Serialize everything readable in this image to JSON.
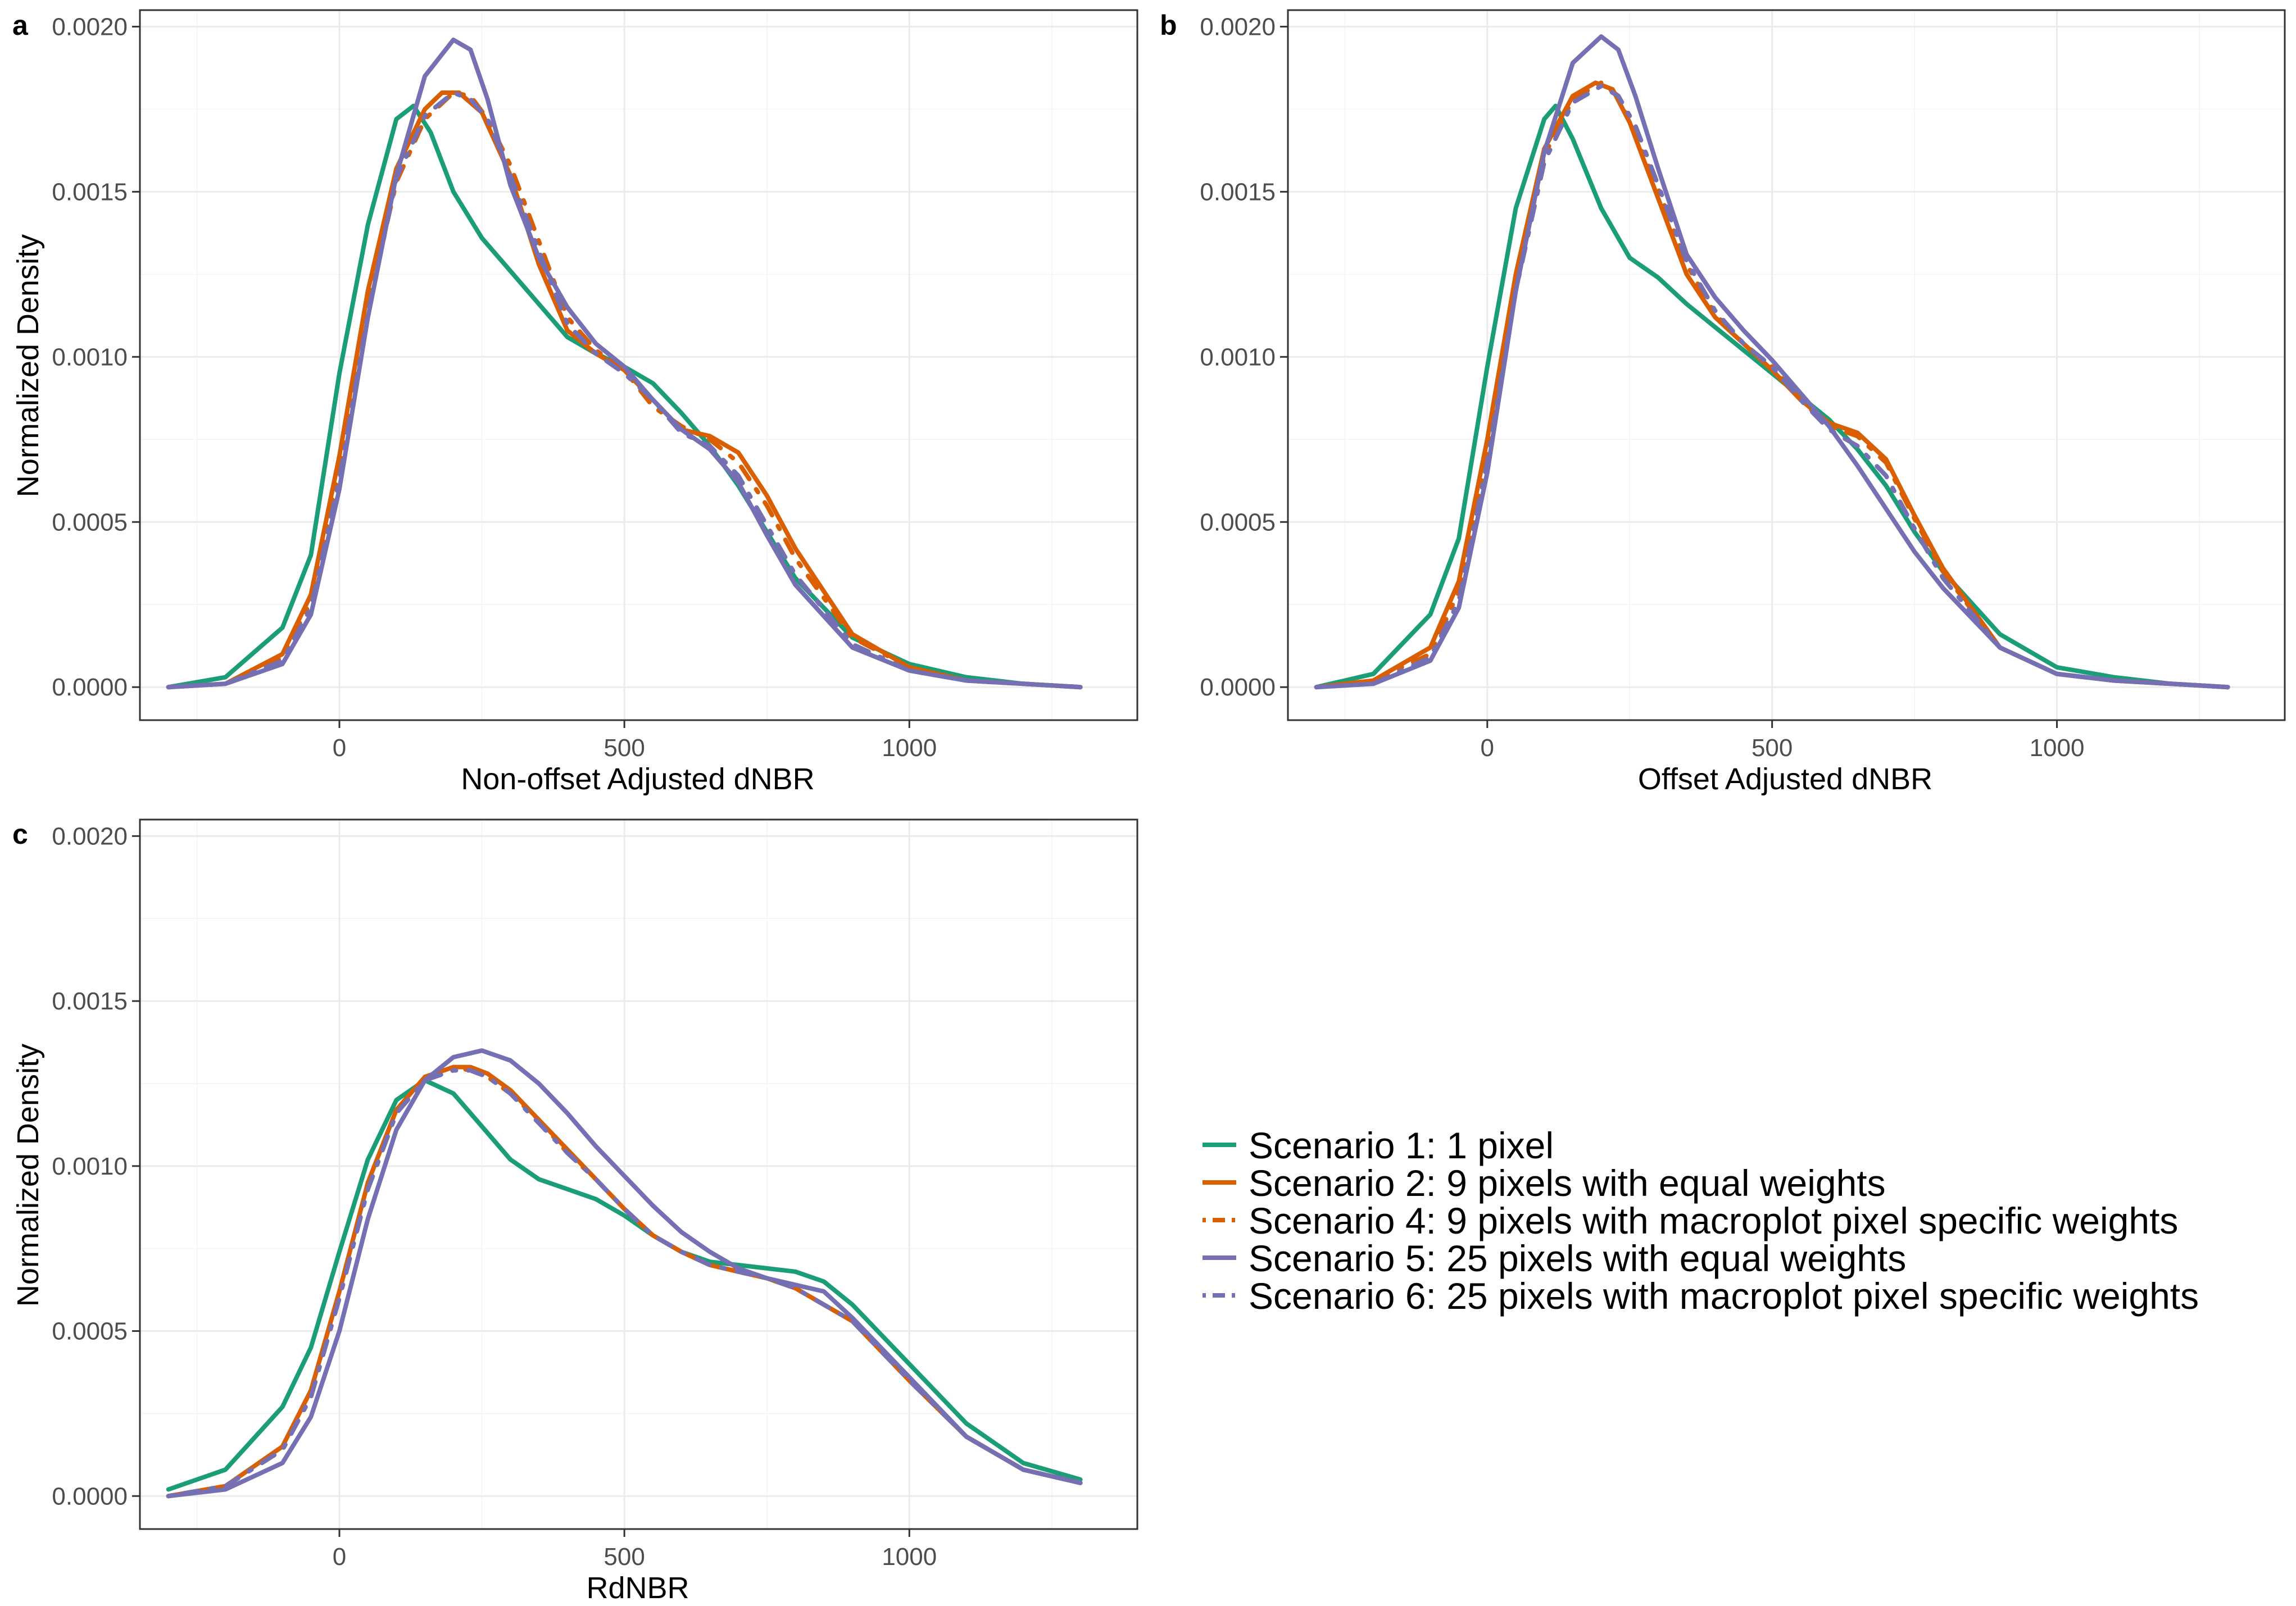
{
  "legend": {
    "items": [
      {
        "label": "Scenario 1: 1 pixel",
        "color": "#1b9e77",
        "dash": "solid"
      },
      {
        "label": "Scenario 2: 9 pixels with equal weights",
        "color": "#d95f02",
        "dash": "solid"
      },
      {
        "label": "Scenario 4: 9 pixels with macroplot pixel specific weights",
        "color": "#d95f02",
        "dash": "dashdot"
      },
      {
        "label": "Scenario 5: 25 pixels with equal weights",
        "color": "#7570b3",
        "dash": "solid"
      },
      {
        "label": "Scenario 6: 25 pixels with macroplot pixel specific weights",
        "color": "#7570b3",
        "dash": "dashdot"
      }
    ]
  },
  "chart_data": [
    {
      "panel": "a",
      "type": "line",
      "xlabel": "Non-offset Adjusted dNBR",
      "ylabel": "Normalized Density",
      "xlim": [
        -350,
        1400
      ],
      "ylim": [
        -0.0001,
        0.00205
      ],
      "xticks": [
        0,
        500,
        1000
      ],
      "xtick_labels": [
        "0",
        "500",
        "1000"
      ],
      "yticks": [
        0,
        0.0005,
        0.001,
        0.0015,
        0.002
      ],
      "ytick_labels": [
        "0.0000",
        "0.0005",
        "0.0010",
        "0.0015",
        "0.0020"
      ],
      "series": [
        {
          "name": "Scenario 1: 1 pixel",
          "x": [
            -300,
            -200,
            -100,
            -50,
            0,
            50,
            100,
            130,
            160,
            200,
            250,
            300,
            350,
            400,
            450,
            500,
            550,
            600,
            650,
            700,
            750,
            800,
            900,
            1000,
            1100,
            1200,
            1300
          ],
          "y": [
            0.0,
            3e-05,
            0.00018,
            0.0004,
            0.00095,
            0.0014,
            0.00172,
            0.00176,
            0.00168,
            0.0015,
            0.00136,
            0.00126,
            0.00116,
            0.00106,
            0.00101,
            0.00097,
            0.00092,
            0.00083,
            0.00073,
            0.00061,
            0.00047,
            0.00033,
            0.00015,
            7e-05,
            3e-05,
            1e-05,
            0.0
          ]
        },
        {
          "name": "Scenario 2: 9 pixels with equal weights",
          "x": [
            -300,
            -200,
            -100,
            -50,
            0,
            50,
            100,
            150,
            180,
            210,
            250,
            300,
            350,
            400,
            450,
            500,
            550,
            600,
            650,
            700,
            750,
            800,
            900,
            1000,
            1100,
            1200,
            1300
          ],
          "y": [
            0.0,
            1e-05,
            0.0001,
            0.00028,
            0.0007,
            0.0012,
            0.00157,
            0.00175,
            0.0018,
            0.0018,
            0.00174,
            0.00155,
            0.00128,
            0.00108,
            0.00101,
            0.00096,
            0.00087,
            0.00078,
            0.00076,
            0.00071,
            0.00058,
            0.00042,
            0.00016,
            6e-05,
            2e-05,
            1e-05,
            0.0
          ]
        },
        {
          "name": "Scenario 4: 9 pixels with macroplot pixel specific weights",
          "x": [
            -300,
            -200,
            -100,
            -50,
            0,
            50,
            100,
            150,
            200,
            230,
            260,
            300,
            350,
            400,
            450,
            500,
            550,
            600,
            650,
            700,
            750,
            800,
            900,
            1000,
            1100,
            1200,
            1300
          ],
          "y": [
            0.0,
            1e-05,
            9e-05,
            0.00026,
            0.00066,
            0.00115,
            0.00153,
            0.00172,
            0.0018,
            0.00179,
            0.00172,
            0.00158,
            0.00135,
            0.00112,
            0.00102,
            0.00096,
            0.00085,
            0.00079,
            0.00075,
            0.00068,
            0.00055,
            0.00039,
            0.00015,
            6e-05,
            2e-05,
            1e-05,
            0.0
          ]
        },
        {
          "name": "Scenario 5: 25 pixels with equal weights",
          "x": [
            -300,
            -200,
            -100,
            -50,
            0,
            50,
            100,
            150,
            200,
            230,
            260,
            300,
            350,
            400,
            450,
            500,
            550,
            600,
            650,
            700,
            750,
            800,
            900,
            1000,
            1100,
            1200,
            1300
          ],
          "y": [
            0.0,
            1e-05,
            7e-05,
            0.00022,
            0.0006,
            0.00112,
            0.00155,
            0.00185,
            0.00196,
            0.00193,
            0.00178,
            0.00152,
            0.0013,
            0.00115,
            0.00104,
            0.00097,
            0.00087,
            0.00078,
            0.00072,
            0.00062,
            0.00046,
            0.00031,
            0.00012,
            5e-05,
            2e-05,
            1e-05,
            0.0
          ]
        },
        {
          "name": "Scenario 6: 25 pixels with macroplot pixel specific weights",
          "x": [
            -300,
            -200,
            -100,
            -50,
            0,
            50,
            100,
            150,
            200,
            230,
            260,
            300,
            350,
            400,
            450,
            500,
            550,
            600,
            650,
            700,
            750,
            800,
            900,
            1000,
            1100,
            1200,
            1300
          ],
          "y": [
            0.0,
            1e-05,
            8e-05,
            0.00024,
            0.00063,
            0.00113,
            0.00154,
            0.00173,
            0.0018,
            0.00178,
            0.00172,
            0.00155,
            0.00132,
            0.0011,
            0.00101,
            0.00095,
            0.00087,
            0.00077,
            0.00073,
            0.00064,
            0.00049,
            0.00034,
            0.00013,
            5e-05,
            2e-05,
            1e-05,
            0.0
          ]
        }
      ]
    },
    {
      "panel": "b",
      "type": "line",
      "xlabel": "Offset Adjusted dNBR",
      "ylabel": "",
      "xlim": [
        -350,
        1400
      ],
      "ylim": [
        -0.0001,
        0.00205
      ],
      "xticks": [
        0,
        500,
        1000
      ],
      "xtick_labels": [
        "0",
        "500",
        "1000"
      ],
      "yticks": [
        0,
        0.0005,
        0.001,
        0.0015,
        0.002
      ],
      "ytick_labels": [
        "0.0000",
        "0.0005",
        "0.0010",
        "0.0015",
        "0.0020"
      ],
      "series": [
        {
          "name": "Scenario 1: 1 pixel",
          "x": [
            -300,
            -200,
            -100,
            -50,
            0,
            50,
            100,
            120,
            150,
            200,
            250,
            300,
            350,
            400,
            450,
            500,
            550,
            600,
            650,
            700,
            750,
            800,
            900,
            1000,
            1100,
            1200,
            1300
          ],
          "y": [
            0.0,
            4e-05,
            0.00022,
            0.00045,
            0.00097,
            0.00145,
            0.00172,
            0.00176,
            0.00166,
            0.00145,
            0.0013,
            0.00124,
            0.00116,
            0.00109,
            0.00102,
            0.00095,
            0.00088,
            0.00081,
            0.00072,
            0.00061,
            0.00047,
            0.00035,
            0.00016,
            6e-05,
            3e-05,
            1e-05,
            0.0
          ]
        },
        {
          "name": "Scenario 2: 9 pixels with equal weights",
          "x": [
            -300,
            -200,
            -100,
            -50,
            0,
            50,
            100,
            150,
            190,
            220,
            250,
            300,
            350,
            400,
            450,
            500,
            550,
            600,
            650,
            700,
            750,
            800,
            900,
            1000,
            1100,
            1200,
            1300
          ],
          "y": [
            0.0,
            2e-05,
            0.00012,
            0.00032,
            0.00075,
            0.00125,
            0.00163,
            0.00179,
            0.00183,
            0.00181,
            0.00171,
            0.00148,
            0.00125,
            0.00112,
            0.00104,
            0.00096,
            0.00087,
            0.0008,
            0.00077,
            0.00069,
            0.00052,
            0.00036,
            0.00012,
            4e-05,
            2e-05,
            1e-05,
            0.0
          ]
        },
        {
          "name": "Scenario 4: 9 pixels with macroplot pixel specific weights",
          "x": [
            -300,
            -200,
            -100,
            -50,
            0,
            50,
            100,
            150,
            200,
            230,
            260,
            300,
            350,
            400,
            450,
            500,
            550,
            600,
            650,
            700,
            750,
            800,
            900,
            1000,
            1100,
            1200,
            1300
          ],
          "y": [
            0.0,
            2e-05,
            0.0001,
            0.00029,
            0.0007,
            0.00122,
            0.00161,
            0.00178,
            0.00183,
            0.00179,
            0.00167,
            0.00151,
            0.00128,
            0.00113,
            0.00104,
            0.00097,
            0.00087,
            0.00079,
            0.00076,
            0.00068,
            0.00051,
            0.00035,
            0.00012,
            4e-05,
            2e-05,
            1e-05,
            0.0
          ]
        },
        {
          "name": "Scenario 5: 25 pixels with equal weights",
          "x": [
            -300,
            -200,
            -100,
            -50,
            0,
            50,
            100,
            150,
            200,
            230,
            260,
            300,
            350,
            400,
            450,
            500,
            550,
            600,
            650,
            700,
            750,
            800,
            900,
            1000,
            1100,
            1200,
            1300
          ],
          "y": [
            0.0,
            1e-05,
            8e-05,
            0.00024,
            0.00065,
            0.0012,
            0.00162,
            0.00189,
            0.00197,
            0.00193,
            0.00179,
            0.00157,
            0.00131,
            0.00118,
            0.00108,
            0.00099,
            0.00089,
            0.00079,
            0.00067,
            0.00054,
            0.00041,
            0.0003,
            0.00012,
            4e-05,
            2e-05,
            1e-05,
            0.0
          ]
        },
        {
          "name": "Scenario 6: 25 pixels with macroplot pixel specific weights",
          "x": [
            -300,
            -200,
            -100,
            -50,
            0,
            50,
            100,
            150,
            200,
            230,
            260,
            300,
            350,
            400,
            450,
            500,
            550,
            600,
            650,
            700,
            750,
            800,
            900,
            1000,
            1100,
            1200,
            1300
          ],
          "y": [
            0.0,
            1e-05,
            9e-05,
            0.00026,
            0.00068,
            0.0012,
            0.00159,
            0.00177,
            0.00182,
            0.00179,
            0.0017,
            0.00152,
            0.00129,
            0.00114,
            0.00104,
            0.00097,
            0.00087,
            0.00078,
            0.00073,
            0.00064,
            0.00048,
            0.00033,
            0.00012,
            4e-05,
            2e-05,
            1e-05,
            0.0
          ]
        }
      ]
    },
    {
      "panel": "c",
      "type": "line",
      "xlabel": "RdNBR",
      "ylabel": "Normalized Density",
      "xlim": [
        -350,
        1400
      ],
      "ylim": [
        -0.0001,
        0.00205
      ],
      "xticks": [
        0,
        500,
        1000
      ],
      "xtick_labels": [
        "0",
        "500",
        "1000"
      ],
      "yticks": [
        0,
        0.0005,
        0.001,
        0.0015,
        0.002
      ],
      "ytick_labels": [
        "0.0000",
        "0.0005",
        "0.0010",
        "0.0015",
        "0.0020"
      ],
      "series": [
        {
          "name": "Scenario 1: 1 pixel",
          "x": [
            -300,
            -200,
            -100,
            -50,
            0,
            50,
            100,
            150,
            200,
            250,
            300,
            350,
            400,
            450,
            500,
            550,
            600,
            650,
            700,
            750,
            800,
            850,
            900,
            1000,
            1100,
            1200,
            1300
          ],
          "y": [
            2e-05,
            8e-05,
            0.00027,
            0.00045,
            0.00074,
            0.00102,
            0.0012,
            0.00126,
            0.00122,
            0.00112,
            0.00102,
            0.00096,
            0.00093,
            0.0009,
            0.00085,
            0.00079,
            0.00074,
            0.00071,
            0.0007,
            0.00069,
            0.00068,
            0.00065,
            0.00058,
            0.0004,
            0.00022,
            0.0001,
            5e-05
          ]
        },
        {
          "name": "Scenario 2: 9 pixels with equal weights",
          "x": [
            -300,
            -200,
            -100,
            -50,
            0,
            50,
            100,
            150,
            200,
            230,
            260,
            300,
            350,
            400,
            450,
            500,
            550,
            600,
            650,
            700,
            750,
            800,
            900,
            1000,
            1100,
            1200,
            1300
          ],
          "y": [
            0.0,
            3e-05,
            0.00015,
            0.00032,
            0.00062,
            0.00095,
            0.00117,
            0.00127,
            0.0013,
            0.0013,
            0.00128,
            0.00123,
            0.00114,
            0.00105,
            0.00096,
            0.00087,
            0.00079,
            0.00074,
            0.0007,
            0.00068,
            0.00066,
            0.00063,
            0.00053,
            0.00035,
            0.00018,
            8e-05,
            4e-05
          ]
        },
        {
          "name": "Scenario 4: 9 pixels with macroplot pixel specific weights",
          "x": [
            -300,
            -200,
            -100,
            -50,
            0,
            50,
            100,
            150,
            200,
            230,
            260,
            300,
            350,
            400,
            450,
            500,
            550,
            600,
            650,
            700,
            750,
            800,
            900,
            1000,
            1100,
            1200,
            1300
          ],
          "y": [
            0.0,
            3e-05,
            0.00014,
            0.0003,
            0.0006,
            0.00093,
            0.00116,
            0.00127,
            0.0013,
            0.00129,
            0.00127,
            0.00122,
            0.00114,
            0.00104,
            0.00096,
            0.00087,
            0.00079,
            0.00074,
            0.0007,
            0.00068,
            0.00066,
            0.00063,
            0.00053,
            0.00035,
            0.00018,
            8e-05,
            4e-05
          ]
        },
        {
          "name": "Scenario 5: 25 pixels with equal weights",
          "x": [
            -300,
            -200,
            -100,
            -50,
            0,
            50,
            100,
            150,
            200,
            250,
            300,
            350,
            400,
            450,
            500,
            550,
            600,
            650,
            700,
            750,
            800,
            850,
            900,
            1000,
            1100,
            1200,
            1300
          ],
          "y": [
            0.0,
            2e-05,
            0.0001,
            0.00024,
            0.0005,
            0.00084,
            0.00111,
            0.00126,
            0.00133,
            0.00135,
            0.00132,
            0.00125,
            0.00116,
            0.00106,
            0.00097,
            0.00088,
            0.0008,
            0.00074,
            0.00069,
            0.00066,
            0.00064,
            0.00062,
            0.00054,
            0.00036,
            0.00018,
            8e-05,
            4e-05
          ]
        },
        {
          "name": "Scenario 6: 25 pixels with macroplot pixel specific weights",
          "x": [
            -300,
            -200,
            -100,
            -50,
            0,
            50,
            100,
            150,
            200,
            230,
            260,
            300,
            350,
            400,
            450,
            500,
            550,
            600,
            650,
            700,
            750,
            800,
            900,
            1000,
            1100,
            1200,
            1300
          ],
          "y": [
            0.0,
            3e-05,
            0.00014,
            0.0003,
            0.0006,
            0.00093,
            0.00116,
            0.00126,
            0.00129,
            0.00129,
            0.00127,
            0.00122,
            0.00113,
            0.00104,
            0.00096,
            0.00087,
            0.00079,
            0.00074,
            0.0007,
            0.00068,
            0.00066,
            0.00063,
            0.00053,
            0.00035,
            0.00018,
            8e-05,
            4e-05
          ]
        }
      ]
    }
  ]
}
